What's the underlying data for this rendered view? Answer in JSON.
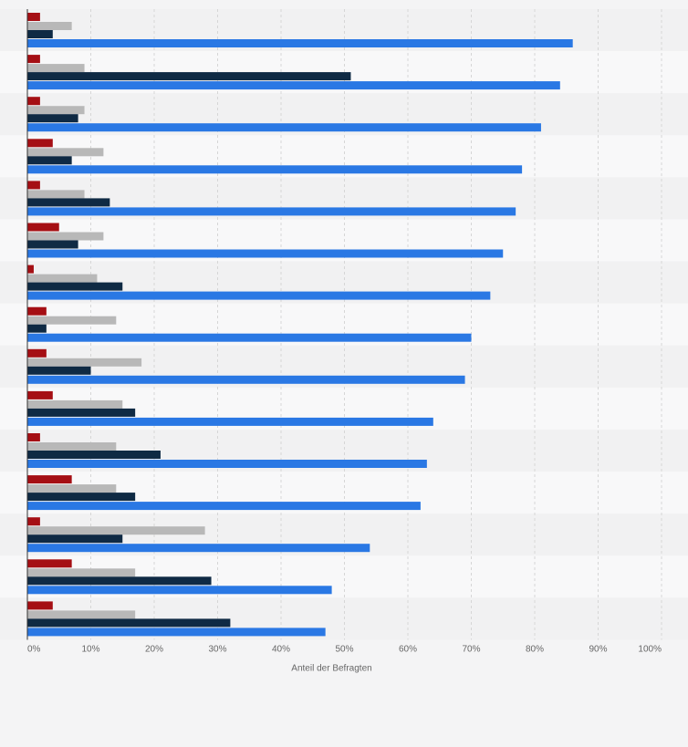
{
  "chart_data": {
    "type": "bar",
    "orientation": "horizontal",
    "xlabel": "Anteil der Befragten",
    "xlim": [
      0,
      100
    ],
    "xticks": [
      "0%",
      "10%",
      "20%",
      "30%",
      "40%",
      "50%",
      "60%",
      "70%",
      "80%",
      "90%",
      "100%"
    ],
    "grid": true,
    "legend": "none",
    "series": [
      {
        "color": "#a50f14",
        "values": [
          2,
          2,
          2,
          4,
          2,
          5,
          1,
          3,
          3,
          4,
          2,
          7,
          2,
          7,
          4
        ]
      },
      {
        "color": "#b8b8b8",
        "values": [
          7,
          9,
          9,
          12,
          9,
          12,
          11,
          14,
          18,
          15,
          14,
          14,
          28,
          17,
          17
        ]
      },
      {
        "color": "#0f2a44",
        "values": [
          4,
          51,
          8,
          7,
          13,
          8,
          15,
          3,
          10,
          17,
          21,
          17,
          15,
          29,
          32
        ]
      },
      {
        "color": "#2a78e4",
        "values": [
          86,
          84,
          81,
          78,
          77,
          75,
          73,
          70,
          69,
          64,
          63,
          62,
          54,
          48,
          47
        ]
      }
    ]
  },
  "colors": {
    "band_light": "#f8f8f9",
    "band_dark": "#f1f1f2",
    "grid": "#d6d6d6",
    "axis": "#333333"
  }
}
